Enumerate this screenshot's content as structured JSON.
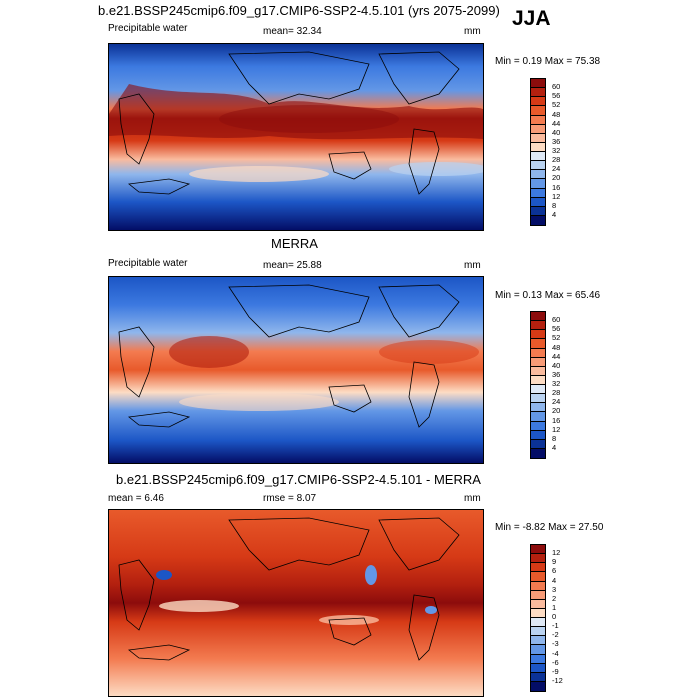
{
  "season": "JJA",
  "panels": [
    {
      "title": "b.e21.BSSP245cmip6.f09_g17.CMIP6-SSP2-4.5.101 (yrs 2075-2099)",
      "left_label": "Precipitable water",
      "stat_text": "mean=  32.34",
      "units": "mm",
      "minmax": "Min =   0.19 Max =  75.38",
      "colorbar": {
        "labels": [
          "60",
          "56",
          "52",
          "48",
          "44",
          "40",
          "36",
          "32",
          "28",
          "24",
          "20",
          "16",
          "12",
          "8",
          "4"
        ],
        "colors": [
          "#8c0c0c",
          "#b3200f",
          "#d63a16",
          "#e85a2b",
          "#f37b50",
          "#f79b77",
          "#fabb9e",
          "#fddcc4",
          "#dfe9f6",
          "#bad3f1",
          "#8fb6ec",
          "#6397e6",
          "#3c79e0",
          "#1c56c6",
          "#0b3296",
          "#030d66"
        ]
      }
    },
    {
      "title": "MERRA",
      "left_label": "Precipitable water",
      "stat_text": "mean=  25.88",
      "units": "mm",
      "minmax": "Min =   0.13 Max =  65.46",
      "colorbar": {
        "labels": [
          "60",
          "56",
          "52",
          "48",
          "44",
          "40",
          "36",
          "32",
          "28",
          "24",
          "20",
          "16",
          "12",
          "8",
          "4"
        ],
        "colors": [
          "#8c0c0c",
          "#b3200f",
          "#d63a16",
          "#e85a2b",
          "#f37b50",
          "#f79b77",
          "#fabb9e",
          "#fddcc4",
          "#dfe9f6",
          "#bad3f1",
          "#8fb6ec",
          "#6397e6",
          "#3c79e0",
          "#1c56c6",
          "#0b3296",
          "#030d66"
        ]
      }
    },
    {
      "title": "b.e21.BSSP245cmip6.f09_g17.CMIP6-SSP2-4.5.101 - MERRA",
      "left_label": "mean =   6.46",
      "stat_text": "rmse =   8.07",
      "units": "mm",
      "minmax": "Min =  -8.82 Max =  27.50",
      "colorbar": {
        "labels": [
          "12",
          "9",
          "6",
          "4",
          "3",
          "2",
          "1",
          "0",
          "-1",
          "-2",
          "-3",
          "-4",
          "-6",
          "-9",
          "-12"
        ],
        "colors": [
          "#8c0c0c",
          "#b3200f",
          "#d63a16",
          "#e85a2b",
          "#f37b50",
          "#f79b77",
          "#fabb9e",
          "#fddcc4",
          "#dfe9f6",
          "#bad3f1",
          "#8fb6ec",
          "#6397e6",
          "#3c79e0",
          "#1c56c6",
          "#0b3296",
          "#030d66"
        ]
      }
    }
  ]
}
